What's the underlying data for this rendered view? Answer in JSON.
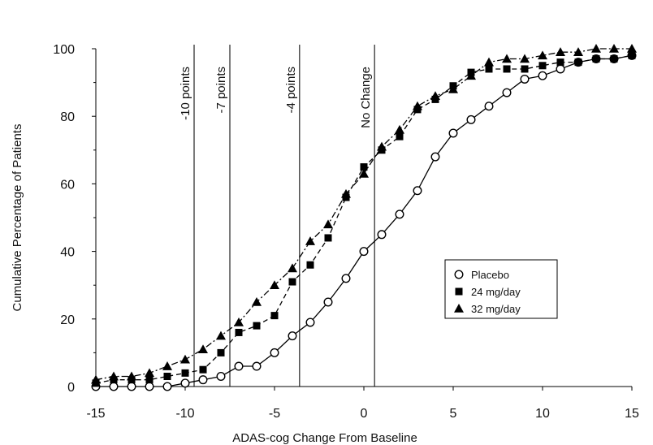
{
  "chart_data": {
    "type": "line",
    "title": "",
    "xlabel": "ADAS-cog Change From Baseline",
    "ylabel": "Cumulative  Percentage of Patients",
    "xlim": [
      -15,
      15
    ],
    "ylim": [
      0,
      100
    ],
    "x_ticks": [
      -15,
      -10,
      -5,
      0,
      5,
      10,
      15
    ],
    "y_ticks": [
      0,
      20,
      40,
      60,
      80,
      100
    ],
    "grid": false,
    "legend_position": "lower-right",
    "reference_lines": [
      {
        "x": -9.5,
        "label": "-10 points"
      },
      {
        "x": -7.5,
        "label": "-7 points"
      },
      {
        "x": -3.6,
        "label": "-4 points"
      },
      {
        "x": 0.6,
        "label": "No Change"
      }
    ],
    "series": [
      {
        "name": "Placebo",
        "marker": "circle-open",
        "line": "solid",
        "color": "#000000",
        "points": [
          [
            -15,
            0
          ],
          [
            -14,
            0
          ],
          [
            -13,
            0
          ],
          [
            -12,
            0
          ],
          [
            -11,
            0
          ],
          [
            -10,
            1
          ],
          [
            -9,
            2
          ],
          [
            -8,
            3
          ],
          [
            -7,
            6
          ],
          [
            -6,
            6
          ],
          [
            -5,
            10
          ],
          [
            -4,
            15
          ],
          [
            -3,
            19
          ],
          [
            -2,
            25
          ],
          [
            -1,
            32
          ],
          [
            0,
            40
          ],
          [
            1,
            45
          ],
          [
            2,
            51
          ],
          [
            3,
            58
          ],
          [
            4,
            68
          ],
          [
            5,
            75
          ],
          [
            6,
            79
          ],
          [
            7,
            83
          ],
          [
            8,
            87
          ],
          [
            9,
            91
          ],
          [
            10,
            92
          ],
          [
            11,
            94
          ],
          [
            12,
            96
          ],
          [
            13,
            97
          ],
          [
            14,
            97
          ],
          [
            15,
            98
          ]
        ]
      },
      {
        "name": "24 mg/day",
        "marker": "square-filled",
        "line": "dashed",
        "color": "#000000",
        "points": [
          [
            -15,
            1
          ],
          [
            -14,
            2
          ],
          [
            -13,
            2
          ],
          [
            -12,
            2
          ],
          [
            -11,
            3
          ],
          [
            -10,
            4
          ],
          [
            -9,
            5
          ],
          [
            -8,
            10
          ],
          [
            -7,
            16
          ],
          [
            -6,
            18
          ],
          [
            -5,
            21
          ],
          [
            -4,
            31
          ],
          [
            -3,
            36
          ],
          [
            -2,
            44
          ],
          [
            -1,
            56
          ],
          [
            0,
            65
          ],
          [
            1,
            70
          ],
          [
            2,
            74
          ],
          [
            3,
            82
          ],
          [
            4,
            85
          ],
          [
            5,
            89
          ],
          [
            6,
            93
          ],
          [
            7,
            94
          ],
          [
            8,
            94
          ],
          [
            9,
            94
          ],
          [
            10,
            95
          ],
          [
            11,
            96
          ],
          [
            12,
            96
          ],
          [
            13,
            97
          ],
          [
            14,
            97
          ],
          [
            15,
            98
          ]
        ]
      },
      {
        "name": "32 mg/day",
        "marker": "triangle-filled",
        "line": "dashdot",
        "color": "#000000",
        "points": [
          [
            -15,
            2
          ],
          [
            -14,
            3
          ],
          [
            -13,
            3
          ],
          [
            -12,
            4
          ],
          [
            -11,
            6
          ],
          [
            -10,
            8
          ],
          [
            -9,
            11
          ],
          [
            -8,
            15
          ],
          [
            -7,
            19
          ],
          [
            -6,
            25
          ],
          [
            -5,
            30
          ],
          [
            -4,
            35
          ],
          [
            -3,
            43
          ],
          [
            -2,
            48
          ],
          [
            -1,
            57
          ],
          [
            0,
            63
          ],
          [
            1,
            71
          ],
          [
            2,
            76
          ],
          [
            3,
            83
          ],
          [
            4,
            86
          ],
          [
            5,
            88
          ],
          [
            6,
            92
          ],
          [
            7,
            96
          ],
          [
            8,
            97
          ],
          [
            9,
            97
          ],
          [
            10,
            98
          ],
          [
            11,
            99
          ],
          [
            12,
            99
          ],
          [
            13,
            100
          ],
          [
            14,
            100
          ],
          [
            15,
            100
          ]
        ]
      }
    ]
  }
}
